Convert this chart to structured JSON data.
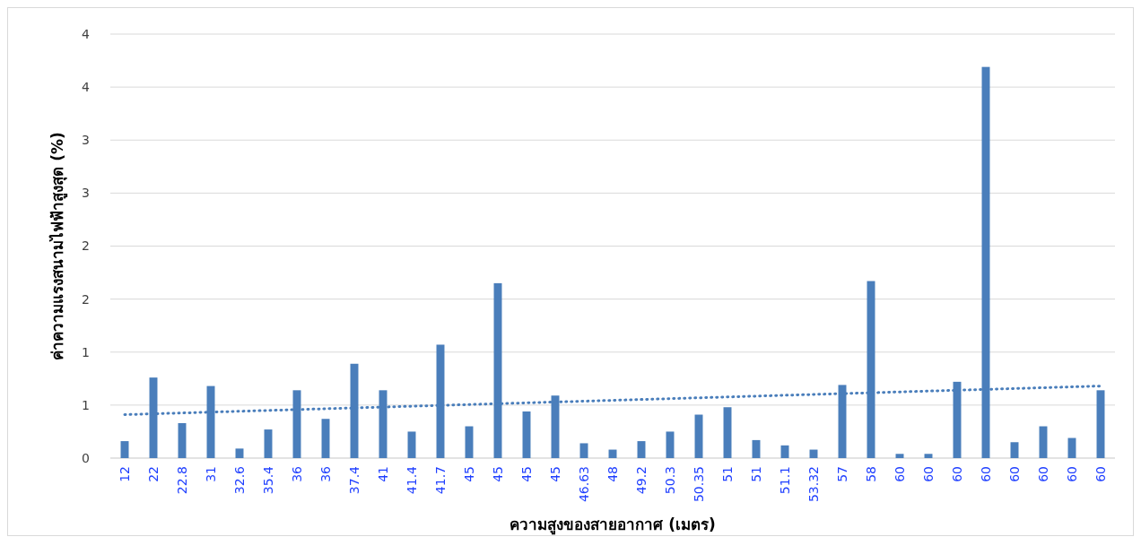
{
  "chart_data": {
    "type": "bar",
    "xlabel": "ความสูงของสายอากาศ (เมตร)",
    "ylabel": "ค่าความแรงสนามไฟฟ้าสูงสุด (%)",
    "categories": [
      "12",
      "22",
      "22.8",
      "31",
      "32.6",
      "35.4",
      "36",
      "36",
      "37.4",
      "41",
      "41.4",
      "41.7",
      "45",
      "45",
      "45",
      "45",
      "46.63",
      "48",
      "49.2",
      "50.3",
      "50.35",
      "51",
      "51",
      "51.1",
      "53.32",
      "57",
      "58",
      "60",
      "60",
      "60",
      "60",
      "60",
      "60",
      "60",
      "60"
    ],
    "series": [
      {
        "color": "#4a7ebb",
        "values": [
          0.16,
          0.76,
          0.33,
          0.68,
          0.09,
          0.27,
          0.64,
          0.37,
          0.89,
          0.64,
          0.25,
          1.07,
          0.3,
          1.65,
          0.44,
          0.59,
          0.14,
          0.08,
          0.16,
          0.25,
          0.41,
          0.48,
          0.17,
          0.12,
          0.08,
          0.69,
          1.67,
          0.04,
          0.04,
          0.72,
          3.69,
          0.15,
          0.3,
          0.19,
          0.64
        ]
      },
      {
        "type": "line",
        "color": "#4a7ebb",
        "line_style": "dotted",
        "values": [
          0.41,
          null,
          null,
          null,
          null,
          null,
          null,
          null,
          null,
          null,
          null,
          null,
          null,
          null,
          null,
          null,
          null,
          null,
          null,
          null,
          null,
          null,
          null,
          null,
          null,
          null,
          null,
          null,
          null,
          null,
          null,
          null,
          null,
          null,
          0.68
        ]
      }
    ],
    "ylim": [
      0,
      4
    ],
    "yticks": [
      0,
      {
        "value": 0.5,
        "label": "1"
      },
      1,
      {
        "value": 1.5,
        "label": "2"
      },
      2,
      {
        "value": 2.5,
        "label": "3"
      },
      3,
      {
        "value": 3.5,
        "label": "4"
      },
      4
    ],
    "grid": "y"
  }
}
